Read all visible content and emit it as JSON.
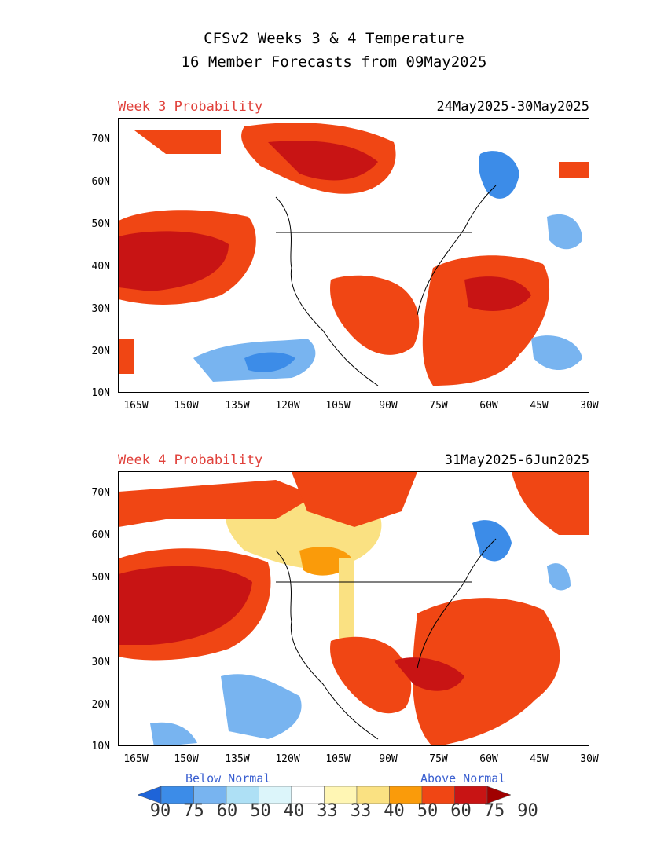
{
  "title_line1": "CFSv2 Weeks 3 & 4 Temperature",
  "title_line2": "16 Member Forecasts from 09May2025",
  "panels": [
    {
      "label": "Week 3 Probability",
      "dates": "24May2025-30May2025"
    },
    {
      "label": "Week 4 Probability",
      "dates": "31May2025-6Jun2025"
    }
  ],
  "lat_ticks": [
    "70N",
    "60N",
    "50N",
    "40N",
    "30N",
    "20N",
    "10N"
  ],
  "lon_ticks": [
    "165W",
    "150W",
    "135W",
    "120W",
    "105W",
    "90W",
    "75W",
    "60W",
    "45W",
    "30W"
  ],
  "legend": {
    "below_label": "Below Normal",
    "above_label": "Above Normal",
    "values": [
      "90",
      "75",
      "60",
      "50",
      "40",
      "33",
      "33",
      "40",
      "50",
      "60",
      "75",
      "90"
    ],
    "colors": [
      "#1e64d8",
      "#3c8ce8",
      "#78b4f0",
      "#aee0f5",
      "#dcf5fa",
      "#ffffff",
      "#fff6b4",
      "#fae182",
      "#fa9b0a",
      "#f04614",
      "#c81414",
      "#a00000"
    ]
  },
  "colors": {
    "label_red": "#e0403a",
    "legend_blue": "#3a5fd0"
  }
}
